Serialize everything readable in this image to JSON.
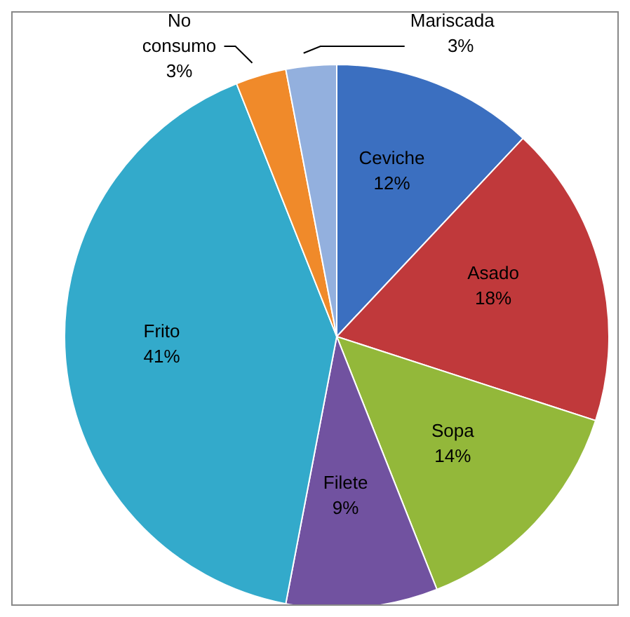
{
  "chart_data": {
    "type": "pie",
    "categories": [
      "Ceviche",
      "Asado",
      "Sopa",
      "Filete",
      "Frito",
      "No consumo",
      "Mariscada"
    ],
    "values": [
      12,
      18,
      14,
      9,
      41,
      3,
      3
    ],
    "colors": [
      "#3b6fc0",
      "#c0393b",
      "#93b83a",
      "#7152a0",
      "#33aacb",
      "#f08a2a",
      "#93b0de"
    ],
    "value_labels": [
      "12%",
      "18%",
      "14%",
      "9%",
      "41%",
      "3%",
      "3%"
    ],
    "legend": false
  }
}
